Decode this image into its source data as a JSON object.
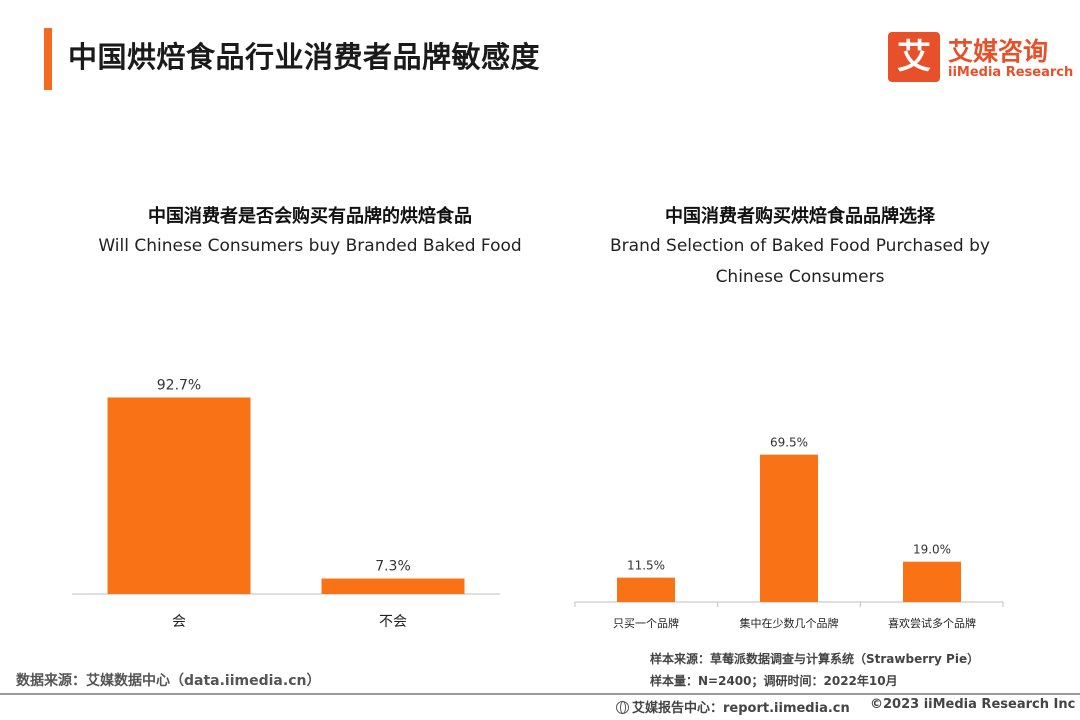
{
  "header": {
    "title": "中国烘焙食品行业消费者品牌敏感度",
    "logo_mark": "艾",
    "logo_cn": "艾媒咨询",
    "logo_en": "iiMedia Research",
    "accent_color": "#f26b21"
  },
  "chart_data": [
    {
      "type": "bar",
      "title": "中国消费者是否会购买有品牌的烘焙食品",
      "subtitle": "Will Chinese Consumers buy Branded Baked Food",
      "categories": [
        "会",
        "不会"
      ],
      "values": [
        92.7,
        7.3
      ],
      "value_labels": [
        "92.7%",
        "7.3%"
      ],
      "unit": "%",
      "ylim": [
        0,
        100
      ],
      "color": "#f97316",
      "grid": false
    },
    {
      "type": "bar",
      "title": "中国消费者购买烘焙食品品牌选择",
      "subtitle": "Brand Selection of Baked Food Purchased by Chinese Consumers",
      "subtitle_lines": [
        "Brand Selection of Baked Food Purchased by",
        "Chinese Consumers"
      ],
      "categories": [
        "只买一个品牌",
        "集中在少数几个品牌",
        "喜欢尝试多个品牌"
      ],
      "values": [
        11.5,
        69.5,
        19.0
      ],
      "value_labels": [
        "11.5%",
        "69.5%",
        "19.0%"
      ],
      "unit": "%",
      "ylim": [
        0,
        100
      ],
      "color": "#f97316",
      "grid": false
    }
  ],
  "notes": {
    "sample_source": "样本来源：草莓派数据调查与计算系统（Strawberry Pie）",
    "sample_size": "样本量：N=2400；调研时间：2022年10月"
  },
  "footer": {
    "data_source": "数据来源：艾媒数据中心（data.iimedia.cn）",
    "report_center": "艾媒报告中心：report.iimedia.cn",
    "copyright": "©2023  iiMedia Research  Inc",
    "report_icon": "globe-icon"
  }
}
